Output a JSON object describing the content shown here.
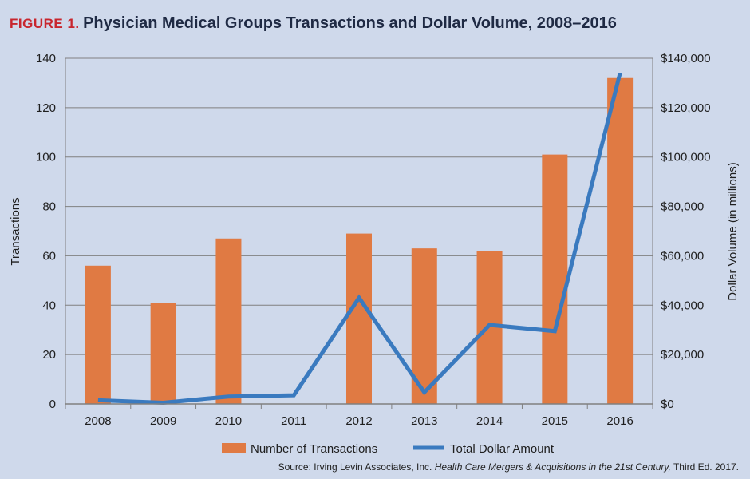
{
  "figure": {
    "label": "FIGURE 1.",
    "title": "Physician Medical Groups Transactions and Dollar Volume, 2008–2016"
  },
  "source": {
    "prefix": "Source: Irving Levin Associates, Inc. ",
    "italic": "Health Care Mergers & Acquisitions in the 21st Century,",
    "suffix": " Third Ed. 2017."
  },
  "colors": {
    "bar": "#e07a43",
    "line": "#3a7abf",
    "background": "#cfd9eb",
    "grid": "#808080"
  },
  "chart_data": {
    "type": "bar",
    "categories": [
      "2008",
      "2009",
      "2010",
      "2011",
      "2012",
      "2013",
      "2014",
      "2015",
      "2016"
    ],
    "series": [
      {
        "name": "Number of Transactions",
        "type": "bar",
        "axis": "left",
        "values": [
          56,
          41,
          67,
          null,
          69,
          63,
          62,
          101,
          132
        ]
      },
      {
        "name": "Total Dollar Amount",
        "type": "line",
        "axis": "right",
        "values": [
          1500,
          500,
          3000,
          3500,
          43000,
          4700,
          32000,
          29500,
          134000
        ]
      }
    ],
    "ylabel": "Transactions",
    "ylabel_right": "Dollar Volume (in millions)",
    "ylim": [
      0,
      140
    ],
    "ylim_right": [
      0,
      140000
    ],
    "yticks": [
      "0",
      "20",
      "40",
      "60",
      "80",
      "100",
      "120",
      "140"
    ],
    "yticks_right": [
      "$0",
      "$20,000",
      "$40,000",
      "$60,000",
      "$80,000",
      "$100,000",
      "$120,000",
      "$140,000"
    ],
    "grid": true,
    "legend_position": "bottom"
  }
}
